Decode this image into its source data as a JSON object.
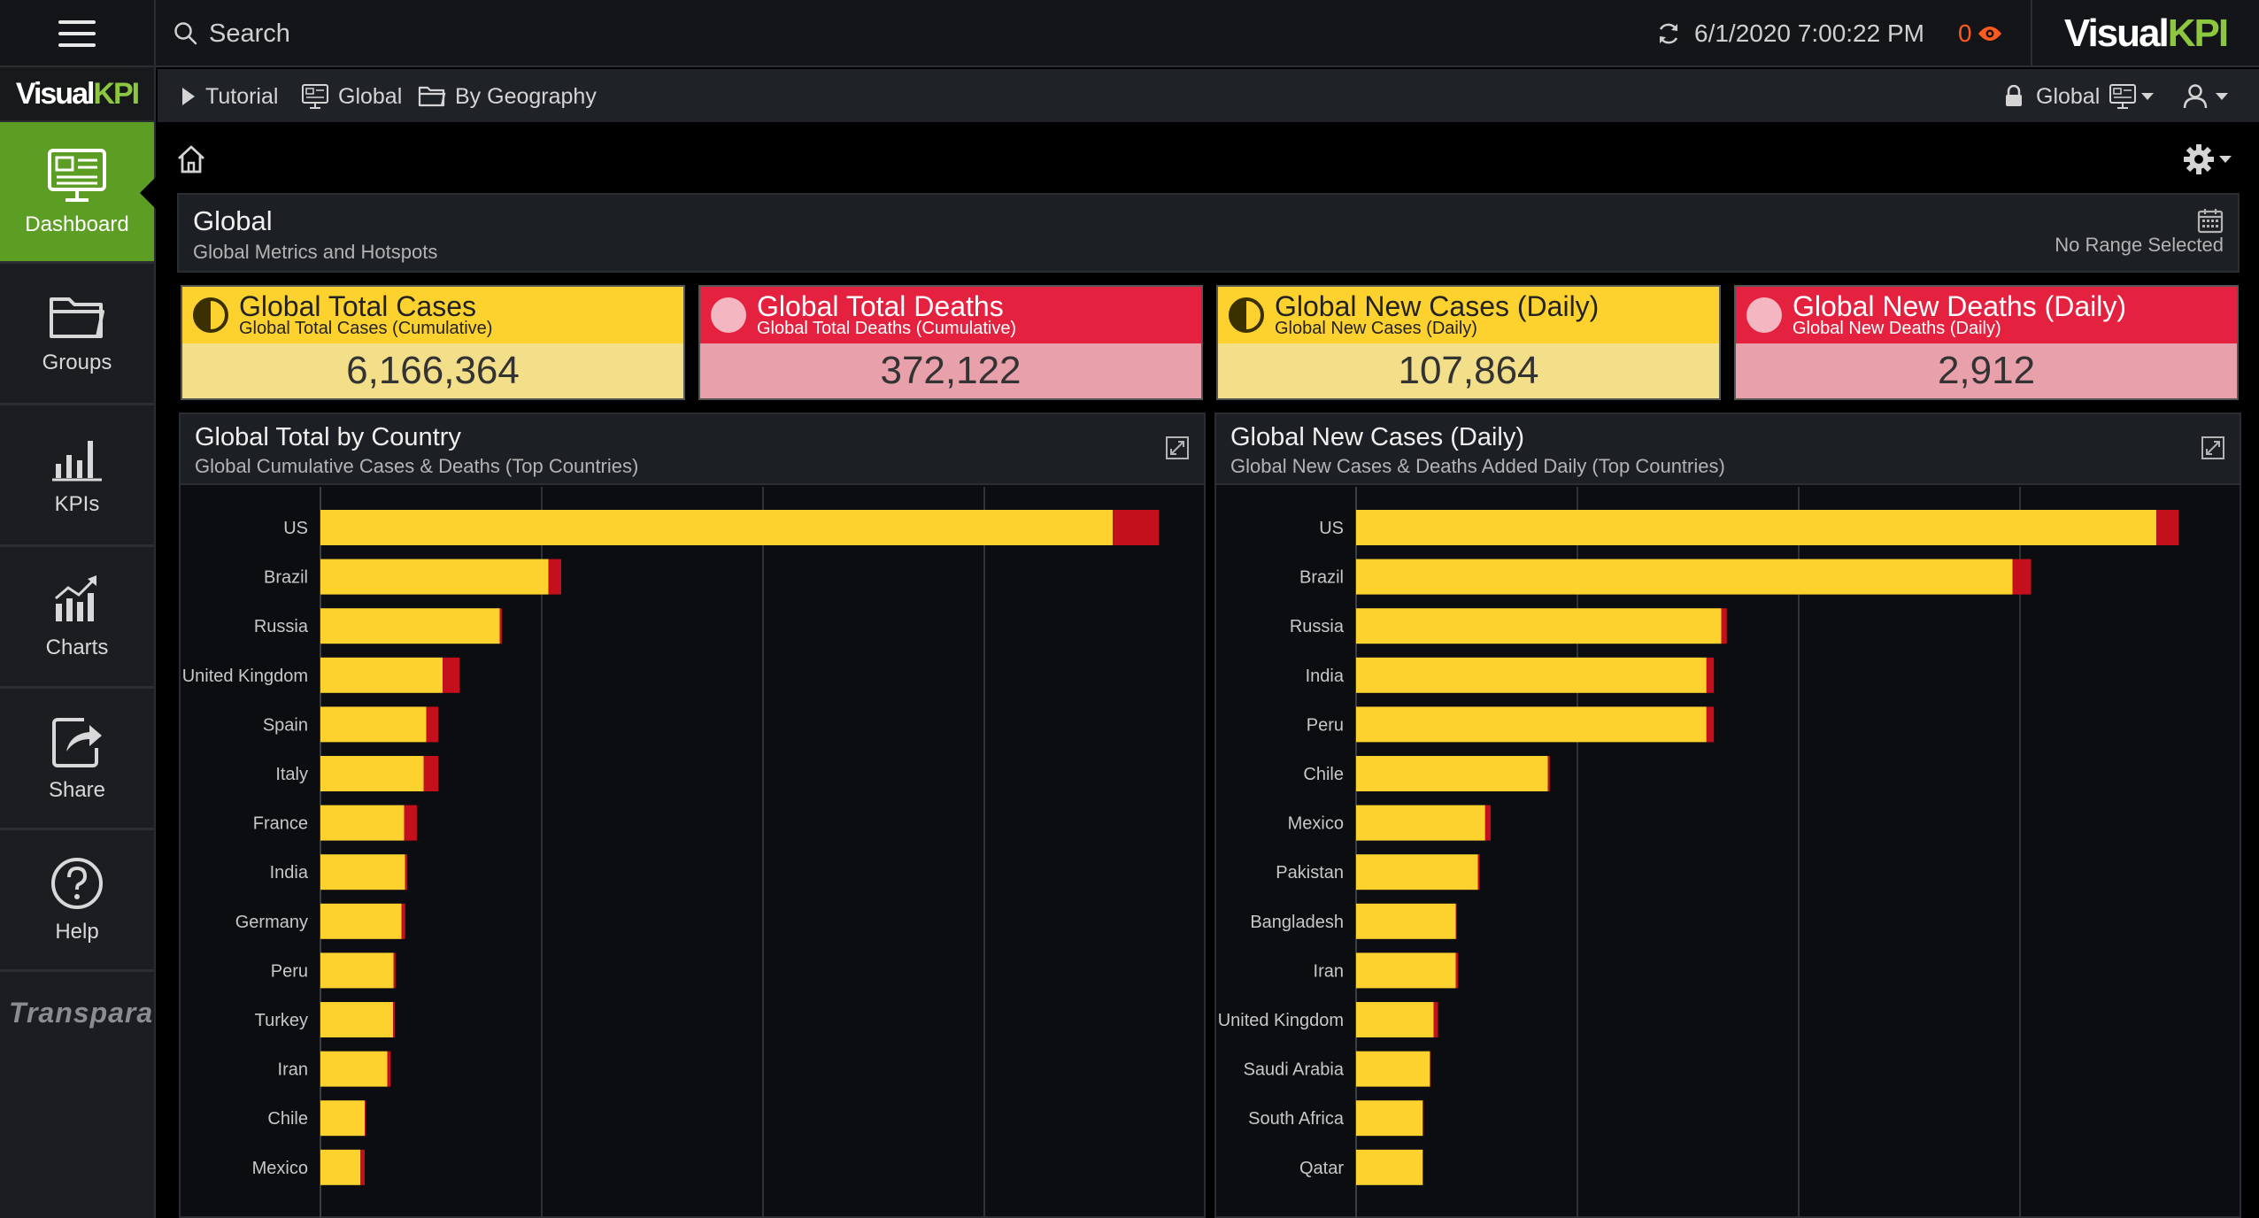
{
  "topbar": {
    "search_placeholder": "Search",
    "timestamp": "6/1/2020 7:00:22 PM",
    "alert_count": "0",
    "brand_left": "Visual",
    "brand_right": "KPI"
  },
  "sidebar": {
    "brand_left": "Visual",
    "brand_right": "KPI",
    "items": [
      {
        "label": "Dashboard",
        "icon": "dashboard-icon",
        "active": true
      },
      {
        "label": "Groups",
        "icon": "folder-icon"
      },
      {
        "label": "KPIs",
        "icon": "bar-chart-icon"
      },
      {
        "label": "Charts",
        "icon": "trend-chart-icon"
      },
      {
        "label": "Share",
        "icon": "share-icon"
      },
      {
        "label": "Help",
        "icon": "help-icon"
      }
    ],
    "footer_logo": "Transpara"
  },
  "breadcrumb": {
    "items": [
      {
        "label": "Tutorial",
        "icon": "play-icon"
      },
      {
        "label": "Global",
        "icon": "dashboard-icon"
      },
      {
        "label": "By Geography",
        "icon": "folder-icon"
      }
    ],
    "context_label": "Global"
  },
  "page": {
    "title": "Global",
    "subtitle": "Global Metrics and Hotspots",
    "range_text": "No Range Selected"
  },
  "kpis": [
    {
      "name": "Global Total Cases",
      "sub": "Global Total Cases (Cumulative)",
      "value": "6,166,364",
      "status": "warning",
      "color": "#fdd22f"
    },
    {
      "name": "Global Total Deaths",
      "sub": "Global Total Deaths (Cumulative)",
      "value": "372,122",
      "status": "alarm",
      "color": "#e4223f"
    },
    {
      "name": "Global New Cases (Daily)",
      "sub": "Global New Cases (Daily)",
      "value": "107,864",
      "status": "warning",
      "color": "#fdd22f"
    },
    {
      "name": "Global New Deaths (Daily)",
      "sub": "Global New Deaths (Daily)",
      "value": "2,912",
      "status": "alarm",
      "color": "#e4223f"
    }
  ],
  "panels": [
    {
      "title": "Global Total by Country",
      "subtitle": "Global Cumulative Cases & Deaths (Top Countries)"
    },
    {
      "title": "Global New Cases (Daily)",
      "subtitle": "Global New Cases & Deaths Added Daily (Top Countries)"
    }
  ],
  "chart_data": [
    {
      "type": "bar",
      "orientation": "horizontal",
      "stacked": true,
      "categories": [
        "US",
        "Brazil",
        "Russia",
        "United Kingdom",
        "Spain",
        "Italy",
        "France",
        "India",
        "Germany",
        "Peru",
        "Turkey",
        "Iran",
        "Chile",
        "Mexico"
      ],
      "series": [
        {
          "values": [
            1790000,
            515000,
            405000,
            276000,
            239000,
            233000,
            189000,
            191000,
            183000,
            165000,
            164000,
            151000,
            100000,
            90000
          ],
          "color": "#fdd22f"
        },
        {
          "values": [
            104000,
            29000,
            4700,
            38500,
            27100,
            33400,
            28800,
            5400,
            8500,
            4500,
            4500,
            7800,
            1000,
            10000
          ],
          "color": "#c4101c"
        }
      ],
      "xlim": [
        0,
        2000000
      ],
      "grid": true,
      "legend": false,
      "xlabel": "",
      "ylabel": ""
    },
    {
      "type": "bar",
      "orientation": "horizontal",
      "stacked": true,
      "categories": [
        "US",
        "Brazil",
        "Russia",
        "India",
        "Peru",
        "Chile",
        "Mexico",
        "Pakistan",
        "Bangladesh",
        "Iran",
        "United Kingdom",
        "Saudi Arabia",
        "South Africa",
        "Qatar"
      ],
      "series": [
        {
          "values": [
            21700,
            17800,
            9900,
            9500,
            9500,
            5200,
            3500,
            3300,
            2700,
            2700,
            2100,
            2000,
            1800,
            1800
          ],
          "color": "#fdd22f"
        },
        {
          "values": [
            600,
            500,
            150,
            200,
            200,
            50,
            150,
            50,
            20,
            60,
            120,
            20,
            30,
            5
          ],
          "color": "#c4101c"
        }
      ],
      "xlim": [
        0,
        24000
      ],
      "grid": true,
      "legend": false,
      "xlabel": "",
      "ylabel": ""
    }
  ]
}
